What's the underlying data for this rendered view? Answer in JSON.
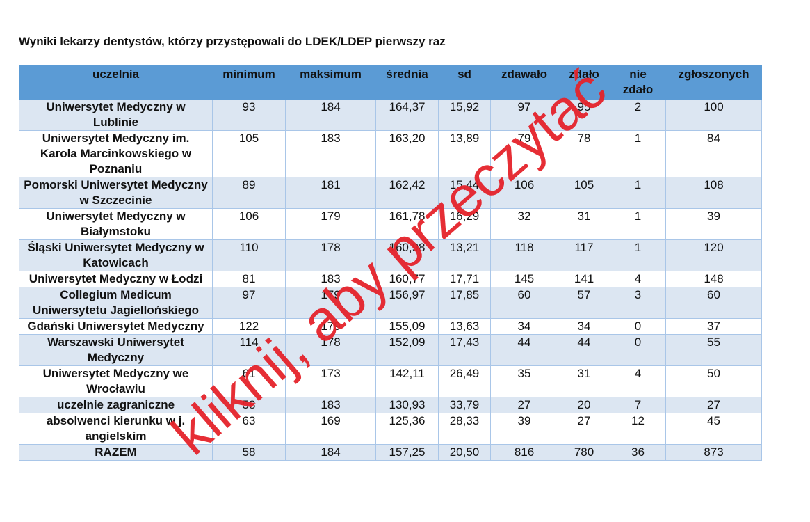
{
  "header": {
    "title": "Wyniki lekarzy dentystów, którzy przystępowali do LDEK/LDEP pierwszy raz"
  },
  "table": {
    "columns": [
      "uczelnia",
      "minimum",
      "maksimum",
      "średnia",
      "sd",
      "zdawało",
      "zdało",
      "nie zdało",
      "zgłoszonych"
    ],
    "rows": [
      [
        "Uniwersytet Medyczny w Lublinie",
        "93",
        "184",
        "164,37",
        "15,92",
        "97",
        "95",
        "2",
        "100"
      ],
      [
        "Uniwersytet Medyczny im. Karola Marcinkowskiego w Poznaniu",
        "105",
        "183",
        "163,20",
        "13,89",
        "79",
        "78",
        "1",
        "84"
      ],
      [
        "Pomorski Uniwersytet Medyczny w Szczecinie",
        "89",
        "181",
        "162,42",
        "15,44",
        "106",
        "105",
        "1",
        "108"
      ],
      [
        "Uniwersytet Medyczny w Białymstoku",
        "106",
        "179",
        "161,78",
        "16,29",
        "32",
        "31",
        "1",
        "39"
      ],
      [
        "Śląski Uniwersytet Medyczny w Katowicach",
        "110",
        "178",
        "160,98",
        "13,21",
        "118",
        "117",
        "1",
        "120"
      ],
      [
        "Uniwersytet Medyczny w Łodzi",
        "81",
        "183",
        "160,77",
        "17,71",
        "145",
        "141",
        "4",
        "148"
      ],
      [
        "Collegium Medicum Uniwersytetu Jagiellońskiego",
        "97",
        "179",
        "156,97",
        "17,85",
        "60",
        "57",
        "3",
        "60"
      ],
      [
        "Gdański Uniwersytet Medyczny",
        "122",
        "179",
        "155,09",
        "13,63",
        "34",
        "34",
        "0",
        "37"
      ],
      [
        "Warszawski Uniwersytet Medyczny",
        "114",
        "178",
        "152,09",
        "17,43",
        "44",
        "44",
        "0",
        "55"
      ],
      [
        "Uniwersytet Medyczny we Wrocławiu",
        "61",
        "173",
        "142,11",
        "26,49",
        "35",
        "31",
        "4",
        "50"
      ],
      [
        "uczelnie zagraniczne",
        "58",
        "183",
        "130,93",
        "33,79",
        "27",
        "20",
        "7",
        "27"
      ],
      [
        "absolwenci kierunku w j. angielskim",
        "63",
        "169",
        "125,36",
        "28,33",
        "39",
        "27",
        "12",
        "45"
      ],
      [
        "RAZEM",
        "58",
        "184",
        "157,25",
        "20,50",
        "816",
        "780",
        "36",
        "873"
      ]
    ]
  },
  "watermark": "kliknij, aby przeczytać"
}
